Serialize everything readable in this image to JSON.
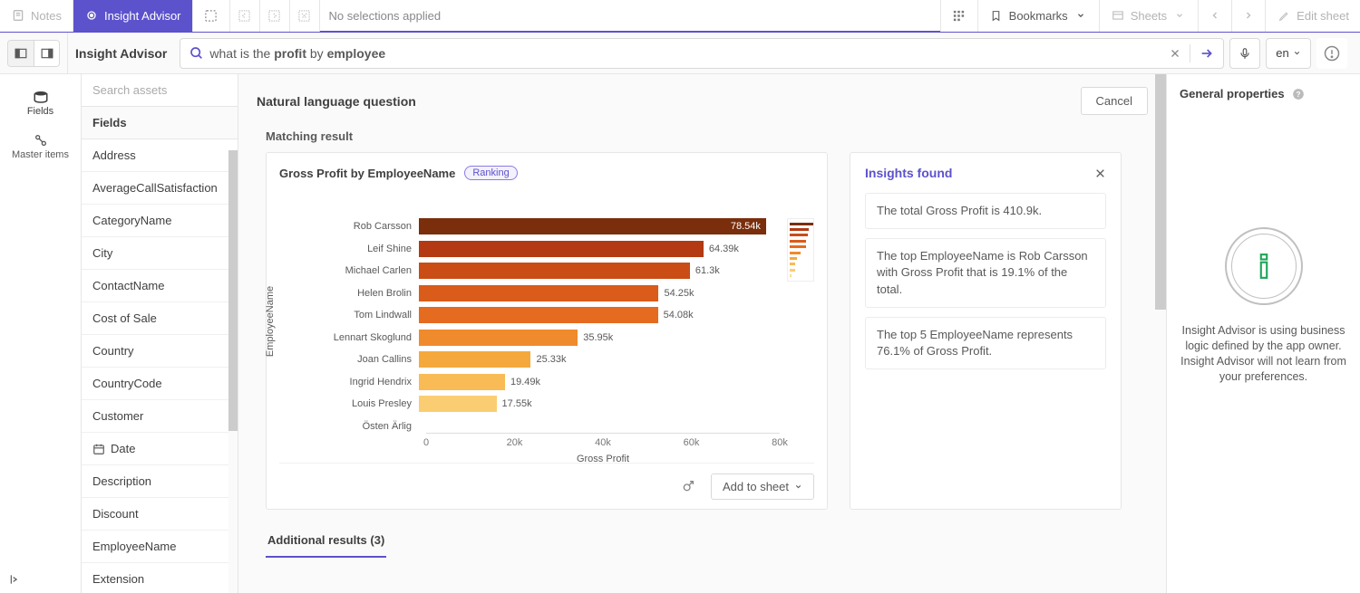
{
  "topbar": {
    "notes": "Notes",
    "insight_advisor": "Insight Advisor",
    "no_selections": "No selections applied",
    "bookmarks": "Bookmarks",
    "sheets": "Sheets",
    "edit_sheet": "Edit sheet"
  },
  "subheader": {
    "title": "Insight Advisor",
    "search_prefix": "what is the ",
    "search_bold1": "profit",
    "search_mid": " by ",
    "search_bold2": "employee",
    "lang": "en"
  },
  "leftrail": {
    "fields": "Fields",
    "master": "Master items"
  },
  "assets": {
    "search_placeholder": "Search assets",
    "section": "Fields",
    "items": [
      {
        "label": "Address"
      },
      {
        "label": "AverageCallSatisfaction"
      },
      {
        "label": "CategoryName"
      },
      {
        "label": "City"
      },
      {
        "label": "ContactName"
      },
      {
        "label": "Cost of Sale"
      },
      {
        "label": "Country"
      },
      {
        "label": "CountryCode"
      },
      {
        "label": "Customer"
      },
      {
        "label": "Date",
        "icon": "date"
      },
      {
        "label": "Description"
      },
      {
        "label": "Discount"
      },
      {
        "label": "EmployeeName"
      },
      {
        "label": "Extension"
      }
    ]
  },
  "center": {
    "question_heading": "Natural language question",
    "cancel": "Cancel",
    "matching": "Matching result",
    "additional": "Additional results (3)",
    "chart": {
      "title": "Gross Profit by EmployeeName",
      "badge": "Ranking",
      "y_label": "EmployeeName",
      "x_label": "Gross Profit",
      "x_ticks": [
        "0",
        "20k",
        "40k",
        "60k",
        "80k"
      ],
      "x_tick_values": [
        0,
        20000,
        40000,
        60000,
        80000
      ],
      "x_max": 80000,
      "row_height": 24.5,
      "top_offset": 36,
      "bars": [
        {
          "name": "Rob Carsson",
          "value": 78540,
          "label": "78.54k",
          "color": "#7a2e0c",
          "label_inside": true
        },
        {
          "name": "Leif Shine",
          "value": 64390,
          "label": "64.39k",
          "color": "#b33a12"
        },
        {
          "name": "Michael Carlen",
          "value": 61300,
          "label": "61.3k",
          "color": "#c94d15"
        },
        {
          "name": "Helen Brolin",
          "value": 54250,
          "label": "54.25k",
          "color": "#d95c1a"
        },
        {
          "name": "Tom Lindwall",
          "value": 54080,
          "label": "54.08k",
          "color": "#e46b1f"
        },
        {
          "name": "Lennart Skoglund",
          "value": 35950,
          "label": "35.95k",
          "color": "#ef8b2c"
        },
        {
          "name": "Joan Callins",
          "value": 25330,
          "label": "25.33k",
          "color": "#f5a93d"
        },
        {
          "name": "Ingrid Hendrix",
          "value": 19490,
          "label": "19.49k",
          "color": "#f8bb55"
        },
        {
          "name": "Louis Presley",
          "value": 17550,
          "label": "17.55k",
          "color": "#fbcd72"
        },
        {
          "name": "Östen Ärlig",
          "value": 0,
          "label": "",
          "color": "#fddc8f"
        }
      ]
    },
    "add_to_sheet": "Add to sheet",
    "insights": {
      "title": "Insights found",
      "items": [
        "The total Gross Profit is 410.9k.",
        "The top EmployeeName is Rob Carsson with Gross Profit that is 19.1% of the total.",
        "The top 5 EmployeeName represents 76.1% of Gross Profit."
      ]
    }
  },
  "right": {
    "title": "General properties",
    "text": "Insight Advisor is using business logic defined by the app owner. Insight Advisor will not learn from your preferences."
  }
}
